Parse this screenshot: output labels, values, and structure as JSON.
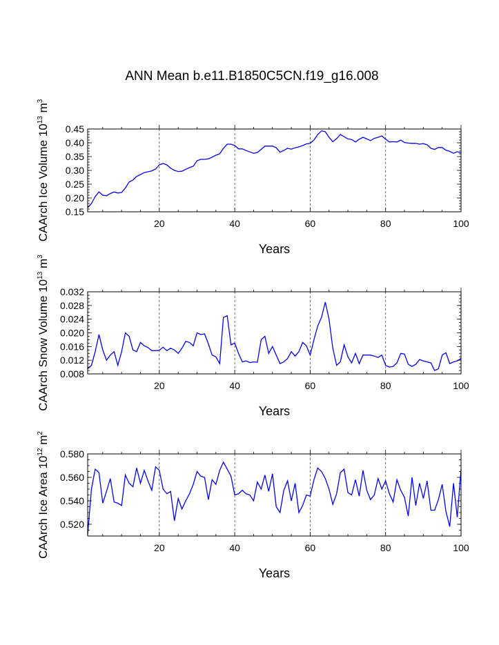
{
  "figure": {
    "title": "ANN Mean b.e11.B1850C5CN.f19_g16.008"
  },
  "chart_data": [
    {
      "type": "line",
      "xlabel": "Years",
      "ylabel_main": "CAArch Ice Volume 10",
      "ylabel_exp": "13",
      "ylabel_unit": " m",
      "ylabel_unit_exp": "3",
      "xlim": [
        1,
        100
      ],
      "ylim": [
        0.15,
        0.45
      ],
      "xticks": [
        20,
        40,
        60,
        80,
        100
      ],
      "yticks": [
        "0.15",
        "0.20",
        "0.25",
        "0.30",
        "0.35",
        "0.40",
        "0.45"
      ],
      "yminor": 0.01,
      "line_color": "#0000ff",
      "ref_lines": [
        20,
        40,
        60,
        80
      ],
      "values": [
        0.165,
        0.18,
        0.205,
        0.222,
        0.21,
        0.208,
        0.216,
        0.222,
        0.218,
        0.22,
        0.236,
        0.258,
        0.265,
        0.278,
        0.285,
        0.292,
        0.295,
        0.298,
        0.305,
        0.32,
        0.325,
        0.32,
        0.308,
        0.3,
        0.296,
        0.297,
        0.304,
        0.31,
        0.315,
        0.335,
        0.34,
        0.34,
        0.342,
        0.348,
        0.355,
        0.36,
        0.38,
        0.395,
        0.395,
        0.39,
        0.378,
        0.378,
        0.372,
        0.367,
        0.362,
        0.365,
        0.376,
        0.388,
        0.388,
        0.388,
        0.382,
        0.366,
        0.372,
        0.38,
        0.377,
        0.382,
        0.385,
        0.39,
        0.396,
        0.398,
        0.41,
        0.43,
        0.443,
        0.44,
        0.42,
        0.404,
        0.415,
        0.43,
        0.422,
        0.414,
        0.412,
        0.403,
        0.413,
        0.42,
        0.414,
        0.408,
        0.416,
        0.42,
        0.425,
        0.413,
        0.403,
        0.404,
        0.403,
        0.41,
        0.401,
        0.399,
        0.398,
        0.398,
        0.395,
        0.397,
        0.393,
        0.38,
        0.376,
        0.383,
        0.383,
        0.373,
        0.369,
        0.362,
        0.368,
        0.363
      ]
    },
    {
      "type": "line",
      "xlabel": "Years",
      "ylabel_main": "CAArch Snow Volume 10",
      "ylabel_exp": "13",
      "ylabel_unit": " m",
      "ylabel_unit_exp": "3",
      "xlim": [
        1,
        100
      ],
      "ylim": [
        0.008,
        0.032
      ],
      "xticks": [
        20,
        40,
        60,
        80,
        100
      ],
      "yticks": [
        "0.008",
        "0.012",
        "0.016",
        "0.020",
        "0.024",
        "0.028",
        "0.032"
      ],
      "yminor": 0.001,
      "line_color": "#0000ff",
      "ref_lines": [
        20,
        40,
        60,
        80
      ],
      "values": [
        0.0095,
        0.0105,
        0.0145,
        0.0195,
        0.015,
        0.012,
        0.0135,
        0.0145,
        0.0105,
        0.0145,
        0.02,
        0.019,
        0.015,
        0.0145,
        0.0172,
        0.0162,
        0.0157,
        0.0148,
        0.0148,
        0.0149,
        0.0158,
        0.0148,
        0.0155,
        0.015,
        0.014,
        0.0155,
        0.0175,
        0.0172,
        0.0162,
        0.02,
        0.0195,
        0.0197,
        0.0168,
        0.0135,
        0.013,
        0.011,
        0.0245,
        0.025,
        0.0165,
        0.017,
        0.014,
        0.0115,
        0.0118,
        0.0113,
        0.0115,
        0.0114,
        0.018,
        0.019,
        0.014,
        0.016,
        0.0135,
        0.011,
        0.0115,
        0.0125,
        0.0145,
        0.0132,
        0.0145,
        0.0172,
        0.0162,
        0.0135,
        0.018,
        0.022,
        0.0245,
        0.029,
        0.024,
        0.0155,
        0.0105,
        0.0115,
        0.0165,
        0.013,
        0.0112,
        0.014,
        0.011,
        0.0135,
        0.0135,
        0.0135,
        0.0132,
        0.0128,
        0.0135,
        0.0105,
        0.01,
        0.0102,
        0.0112,
        0.014,
        0.0138,
        0.0108,
        0.0102,
        0.0108,
        0.0122,
        0.0118,
        0.0115,
        0.0112,
        0.009,
        0.0095,
        0.0135,
        0.0142,
        0.011,
        0.0115,
        0.0118,
        0.0125
      ]
    },
    {
      "type": "line",
      "xlabel": "Years",
      "ylabel_main": "CAArch Ice Area 10",
      "ylabel_exp": "12",
      "ylabel_unit": " m",
      "ylabel_unit_exp": "2",
      "xlim": [
        1,
        100
      ],
      "ylim": [
        0.51,
        0.58
      ],
      "xticks": [
        20,
        40,
        60,
        80,
        100
      ],
      "yticks": [
        "0.520",
        "0.540",
        "0.560",
        "0.580"
      ],
      "yticks_values": [
        0.52,
        0.54,
        0.56,
        0.58
      ],
      "yminor": 0.005,
      "line_color": "#0000ff",
      "ref_lines": [
        20,
        40,
        60,
        80
      ],
      "values": [
        0.511,
        0.55,
        0.567,
        0.564,
        0.538,
        0.548,
        0.559,
        0.539,
        0.538,
        0.536,
        0.562,
        0.555,
        0.552,
        0.568,
        0.555,
        0.566,
        0.557,
        0.549,
        0.569,
        0.566,
        0.55,
        0.546,
        0.548,
        0.523,
        0.542,
        0.533,
        0.54,
        0.546,
        0.554,
        0.565,
        0.561,
        0.56,
        0.541,
        0.558,
        0.554,
        0.566,
        0.573,
        0.567,
        0.561,
        0.545,
        0.546,
        0.549,
        0.546,
        0.545,
        0.54,
        0.556,
        0.55,
        0.562,
        0.548,
        0.563,
        0.535,
        0.53,
        0.549,
        0.557,
        0.54,
        0.555,
        0.53,
        0.536,
        0.545,
        0.544,
        0.558,
        0.568,
        0.565,
        0.559,
        0.55,
        0.537,
        0.546,
        0.564,
        0.567,
        0.547,
        0.545,
        0.558,
        0.544,
        0.566,
        0.549,
        0.541,
        0.545,
        0.559,
        0.55,
        0.557,
        0.546,
        0.539,
        0.558,
        0.549,
        0.543,
        0.527,
        0.56,
        0.536,
        0.555,
        0.542,
        0.557,
        0.532,
        0.532,
        0.541,
        0.554,
        0.531,
        0.518,
        0.555,
        0.526,
        0.567
      ]
    }
  ]
}
